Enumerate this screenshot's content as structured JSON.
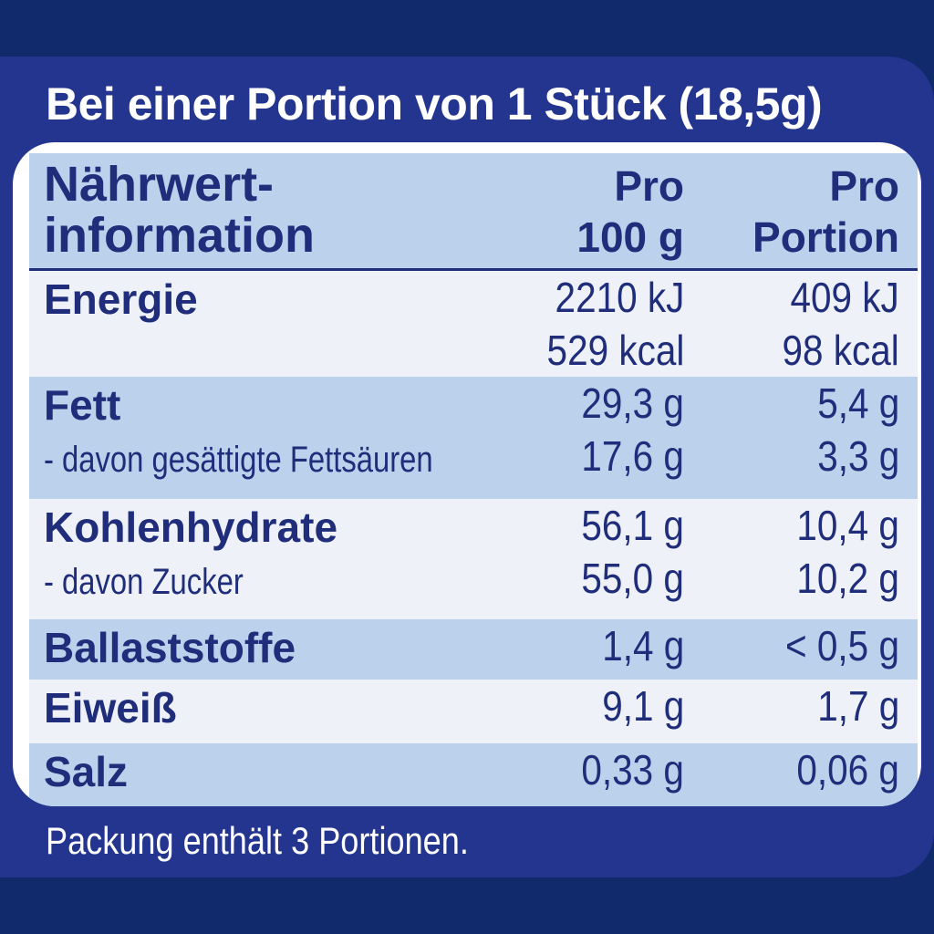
{
  "header": {
    "title": "Bei einer Portion von 1 Stück (18,5g)"
  },
  "table": {
    "head": {
      "name_line1": "Nährwert-",
      "name_line2": "information",
      "col1_line1": "Pro",
      "col1_line2": "100 g",
      "col2_line1": "Pro",
      "col2_line2": "Portion"
    },
    "energy": {
      "label": "Energie",
      "per100_kj": "2210 kJ",
      "per100_kcal": "529 kcal",
      "portion_kj": "409 kJ",
      "portion_kcal": "98 kcal"
    },
    "fat": {
      "label": "Fett",
      "per100": "29,3 g",
      "portion": "5,4 g",
      "sub_label": "- davon gesättigte Fettsäuren",
      "sub_per100": "17,6 g",
      "sub_portion": "3,3 g"
    },
    "carbs": {
      "label": "Kohlenhydrate",
      "per100": "56,1 g",
      "portion": "10,4 g",
      "sub_label": "-  davon Zucker",
      "sub_per100": "55,0 g",
      "sub_portion": "10,2 g"
    },
    "fiber": {
      "label": "Ballaststoffe",
      "per100": "1,4 g",
      "portion": "< 0,5 g"
    },
    "protein": {
      "label": "Eiweiß",
      "per100": "9,1 g",
      "portion": "1,7 g"
    },
    "salt": {
      "label": "Salz",
      "per100": "0,33 g",
      "portion": "0,06 g"
    }
  },
  "footer": {
    "text": "Packung enthält 3 Portionen."
  },
  "colors": {
    "background": "#102a6b",
    "panel": "#23358f",
    "text_dark": "#1f2d7a",
    "row_blue": "#bcd1ec",
    "row_light": "#eef2f8"
  }
}
